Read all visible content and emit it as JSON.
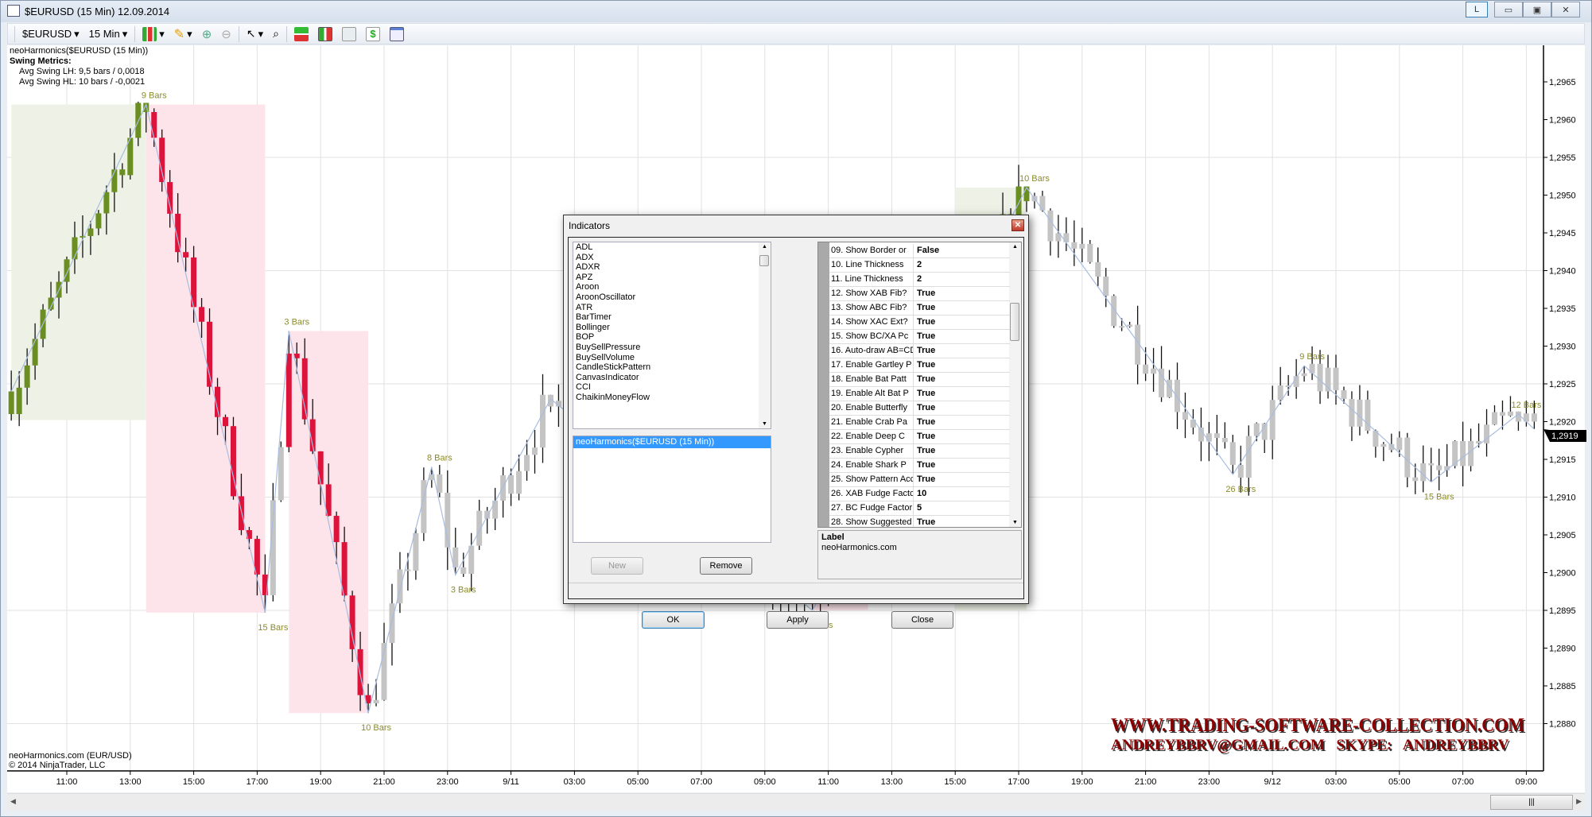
{
  "window": {
    "title": "$EURUSD (15 Min)  12.09.2014",
    "buttons": [
      "L",
      "▭",
      "▣",
      "✕"
    ]
  },
  "toolbar": {
    "instrument": "$EURUSD",
    "interval": "15 Min"
  },
  "info": {
    "indicator": "neoHarmonics($EURUSD (15 Min))",
    "metrics_title": "Swing Metrics:",
    "lh": "Avg Swing LH: 9,5 bars / 0,0018",
    "hl": "Avg Swing HL: 10 bars / -0,0021"
  },
  "footer": {
    "line1": "neoHarmonics.com (EUR/USD)",
    "line2": "© 2014 NinjaTrader, LLC"
  },
  "watermark": {
    "line1": "WWW.TRADING-SOFTWARE-COLLECTION.COM",
    "line2": "ANDREYBBRV@GMAIL.COM  SKYPE: ANDREYBBRV"
  },
  "colors": {
    "up_swing": "#6b8e23",
    "down_swing": "#dc143c",
    "neutral": "#c4c4c4",
    "green_zone": "#eef2e6",
    "pink_zone": "#fce4ea",
    "zigzag": "#a8bde0",
    "label": "#8b8b2b"
  },
  "chart_data": {
    "type": "candlestick",
    "last_price": "1,2919",
    "price_ticks": [
      "1,2965",
      "1,2960",
      "1,2955",
      "1,2950",
      "1,2945",
      "1,2940",
      "1,2935",
      "1,2930",
      "1,2925",
      "1,2920",
      "1,2915",
      "1,2910",
      "1,2905",
      "1,2900",
      "1,2895",
      "1,2890",
      "1,2885",
      "1,2880"
    ],
    "ylim": [
      1.288,
      1.2965
    ],
    "time_ticks": [
      "11:00",
      "13:00",
      "15:00",
      "17:00",
      "19:00",
      "21:00",
      "23:00",
      "9/11",
      "03:00",
      "05:00",
      "07:00",
      "09:00",
      "11:00",
      "13:00",
      "15:00",
      "17:00",
      "19:00",
      "21:00",
      "23:00",
      "9/12",
      "03:00",
      "05:00",
      "07:00",
      "09:00"
    ],
    "swings": [
      {
        "time": "9/10 09:15",
        "price": 1.2924,
        "label": ""
      },
      {
        "time": "9/10 13:30",
        "price": 1.2962,
        "label": "9 Bars"
      },
      {
        "time": "9/10 17:15",
        "price": 1.28947,
        "label": "15 Bars"
      },
      {
        "time": "9/10 18:00",
        "price": 1.2932,
        "label": "3 Bars"
      },
      {
        "time": "9/10 20:30",
        "price": 1.28814,
        "label": "10 Bars"
      },
      {
        "time": "9/10 22:30",
        "price": 1.2914,
        "label": "8 Bars"
      },
      {
        "time": "9/10 23:15",
        "price": 1.28997,
        "label": "3 Bars"
      },
      {
        "time": "9/11 02:15",
        "price": 1.2923,
        "label": ""
      },
      {
        "time": "9/11 10:30",
        "price": 1.2895,
        "label": "3 Bars"
      },
      {
        "time": "9/11 17:15",
        "price": 1.2951,
        "label": "10 Bars"
      },
      {
        "time": "9/11 23:45",
        "price": 1.2913,
        "label": "26 Bars"
      },
      {
        "time": "9/12 02:00",
        "price": 1.29274,
        "label": "9 Bars"
      },
      {
        "time": "9/12 06:00",
        "price": 1.2912,
        "label": "15 Bars"
      },
      {
        "time": "9/12 08:45",
        "price": 1.2921,
        "label": "12 Bars"
      },
      {
        "time": "9/12 09:15",
        "price": 1.2919,
        "label": ""
      }
    ],
    "zones": [
      {
        "kind": "green",
        "from": "9/10 09:15",
        "to": "9/10 13:30",
        "low": 1.29202,
        "high": 1.2962
      },
      {
        "kind": "pink",
        "from": "9/10 13:30",
        "to": "9/10 17:15",
        "low": 1.28947,
        "high": 1.2962
      },
      {
        "kind": "pink",
        "from": "9/10 18:00",
        "to": "9/10 20:30",
        "low": 1.28814,
        "high": 1.2932
      },
      {
        "kind": "pink",
        "from": "9/11 10:30",
        "to": "9/11 12:15",
        "low": 1.2895,
        "high": 1.2923
      },
      {
        "kind": "green",
        "from": "9/11 15:00",
        "to": "9/11 17:15",
        "low": 1.2895,
        "high": 1.2951
      }
    ]
  },
  "dialog": {
    "title": "Indicators",
    "indicators": [
      "ADL",
      "ADX",
      "ADXR",
      "APZ",
      "Aroon",
      "AroonOscillator",
      "ATR",
      "BarTimer",
      "Bollinger",
      "BOP",
      "BuySellPressure",
      "BuySellVolume",
      "CandleStickPattern",
      "CanvasIndicator",
      "CCI",
      "ChaikinMoneyFlow"
    ],
    "applied": [
      "neoHarmonics($EURUSD (15 Min))"
    ],
    "new_label": "New",
    "remove_label": "Remove",
    "properties": [
      {
        "name": "09.    Show Border or",
        "value": "False"
      },
      {
        "name": "10. Line Thickness",
        "value": "2"
      },
      {
        "name": "11.    Line Thickness",
        "value": "2"
      },
      {
        "name": "12. Show XAB Fib?",
        "value": "True"
      },
      {
        "name": "13.    Show ABC Fib?",
        "value": "True"
      },
      {
        "name": "14.    Show XAC Ext?",
        "value": "True"
      },
      {
        "name": "15.    Show BC/XA Pc",
        "value": "True"
      },
      {
        "name": "16. Auto-draw AB=CD",
        "value": "True"
      },
      {
        "name": "17. Enable Gartley P",
        "value": "True"
      },
      {
        "name": "18.    Enable Bat Patt",
        "value": "True"
      },
      {
        "name": "19.    Enable Alt Bat P",
        "value": "True"
      },
      {
        "name": "20.    Enable Butterfly",
        "value": "True"
      },
      {
        "name": "21.    Enable Crab Pa",
        "value": "True"
      },
      {
        "name": "22.    Enable Deep C",
        "value": "True"
      },
      {
        "name": "23.    Enable Cypher",
        "value": "True"
      },
      {
        "name": "24.    Enable Shark P",
        "value": "True"
      },
      {
        "name": "25. Show Pattern Acc",
        "value": "True"
      },
      {
        "name": "26. XAB Fudge Factc",
        "value": "10"
      },
      {
        "name": "27. BC Fudge Factor",
        "value": "5"
      },
      {
        "name": "28. Show Suggested",
        "value": "True"
      }
    ],
    "label_title": "Label",
    "label_value": "neoHarmonics.com",
    "ok_label": "OK",
    "apply_label": "Apply",
    "close_label": "Close"
  }
}
